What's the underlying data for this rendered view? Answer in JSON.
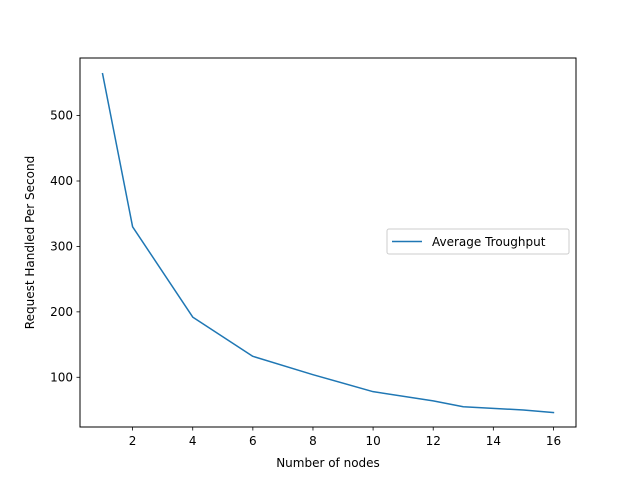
{
  "chart_data": {
    "type": "line",
    "title": "",
    "xlabel": "Number of nodes",
    "ylabel": "Request Handled Per Second",
    "xlim": [
      0.25,
      16.75
    ],
    "ylim": [
      24,
      588
    ],
    "xticks": [
      2,
      4,
      6,
      8,
      10,
      12,
      14,
      16
    ],
    "xtick_labels": [
      "2",
      "4",
      "6",
      "8",
      "10",
      "12",
      "14",
      "16"
    ],
    "yticks": [
      100,
      200,
      300,
      400,
      500
    ],
    "ytick_labels": [
      "100",
      "200",
      "300",
      "400",
      "500"
    ],
    "grid": false,
    "legend_position": "center-right",
    "series": [
      {
        "name": "Average Troughput",
        "color": "#1f77b4",
        "x": [
          1,
          2,
          4,
          6,
          8,
          10,
          12,
          13,
          15,
          16
        ],
        "y": [
          564,
          330,
          192,
          132,
          104,
          78,
          64,
          55,
          50,
          46
        ]
      }
    ]
  }
}
